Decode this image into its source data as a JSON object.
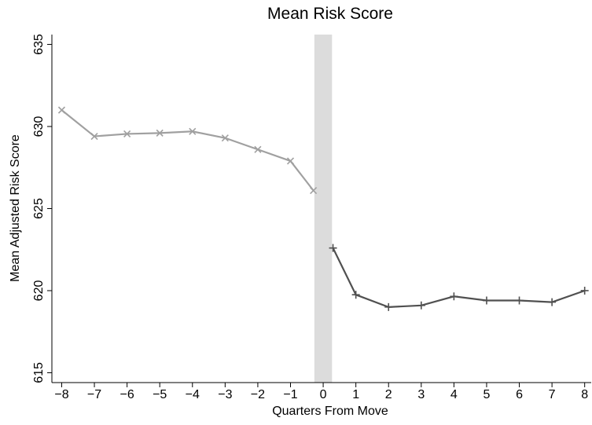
{
  "chart_data": {
    "type": "line",
    "title": "Mean Risk Score",
    "xlabel": "Quarters From Move",
    "ylabel": "Mean Adjusted Risk Score",
    "xlim": [
      -8.3,
      8.2
    ],
    "ylim": [
      614.4,
      635.6
    ],
    "xticks": [
      {
        "value": -8,
        "label": "−8"
      },
      {
        "value": -7,
        "label": "−7"
      },
      {
        "value": -6,
        "label": "−6"
      },
      {
        "value": -5,
        "label": "−5"
      },
      {
        "value": -4,
        "label": "−4"
      },
      {
        "value": -3,
        "label": "−3"
      },
      {
        "value": -2,
        "label": "−2"
      },
      {
        "value": -1,
        "label": "−1"
      },
      0,
      1,
      2,
      3,
      4,
      5,
      6,
      7,
      8
    ],
    "yticks": [
      615,
      620,
      625,
      630,
      635
    ],
    "shade": [
      -0.27,
      0.27
    ],
    "shade_color": "#dcdcdc",
    "series": [
      {
        "color": "#a0a0a0",
        "marker": "x",
        "x": [
          -8,
          -7,
          -6,
          -5,
          -4,
          -3,
          -2,
          -1,
          -0.3
        ],
        "values": [
          631.0,
          629.4,
          629.55,
          629.6,
          629.7,
          629.3,
          628.6,
          627.9,
          626.1
        ]
      },
      {
        "color": "#505050",
        "marker": "+",
        "x": [
          0.3,
          1,
          2,
          3,
          4,
          5,
          6,
          7,
          8
        ],
        "values": [
          622.6,
          619.75,
          619.0,
          619.1,
          619.65,
          619.4,
          619.4,
          619.3,
          620.0
        ]
      }
    ]
  }
}
